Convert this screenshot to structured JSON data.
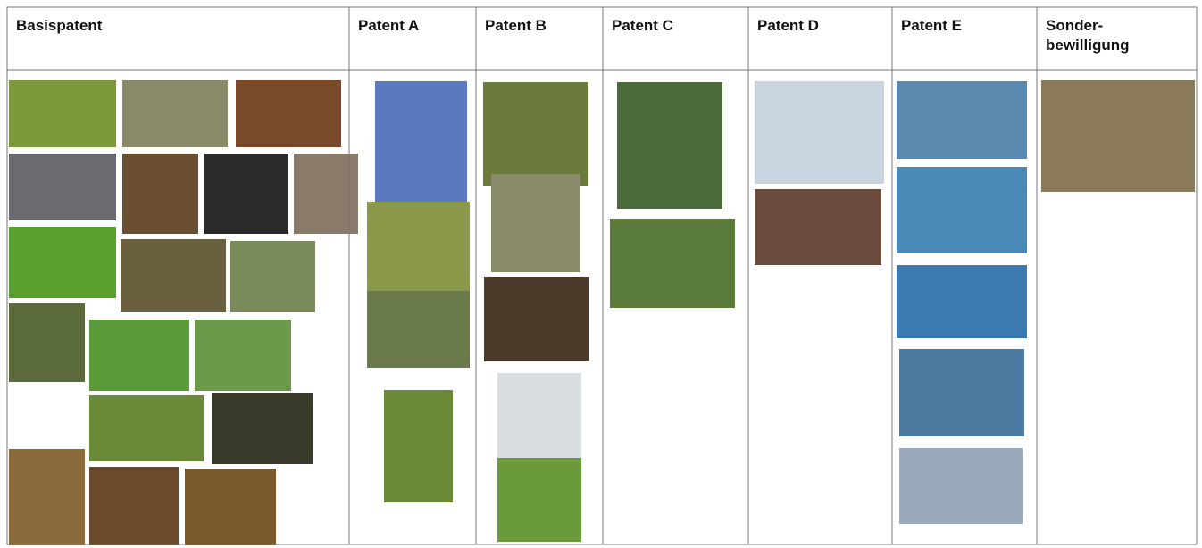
{
  "table": {
    "columns": [
      "Basispatent",
      "Patent A",
      "Patent B",
      "Patent C",
      "Patent D",
      "Patent E",
      "Sonder-\nbewilligung"
    ]
  }
}
